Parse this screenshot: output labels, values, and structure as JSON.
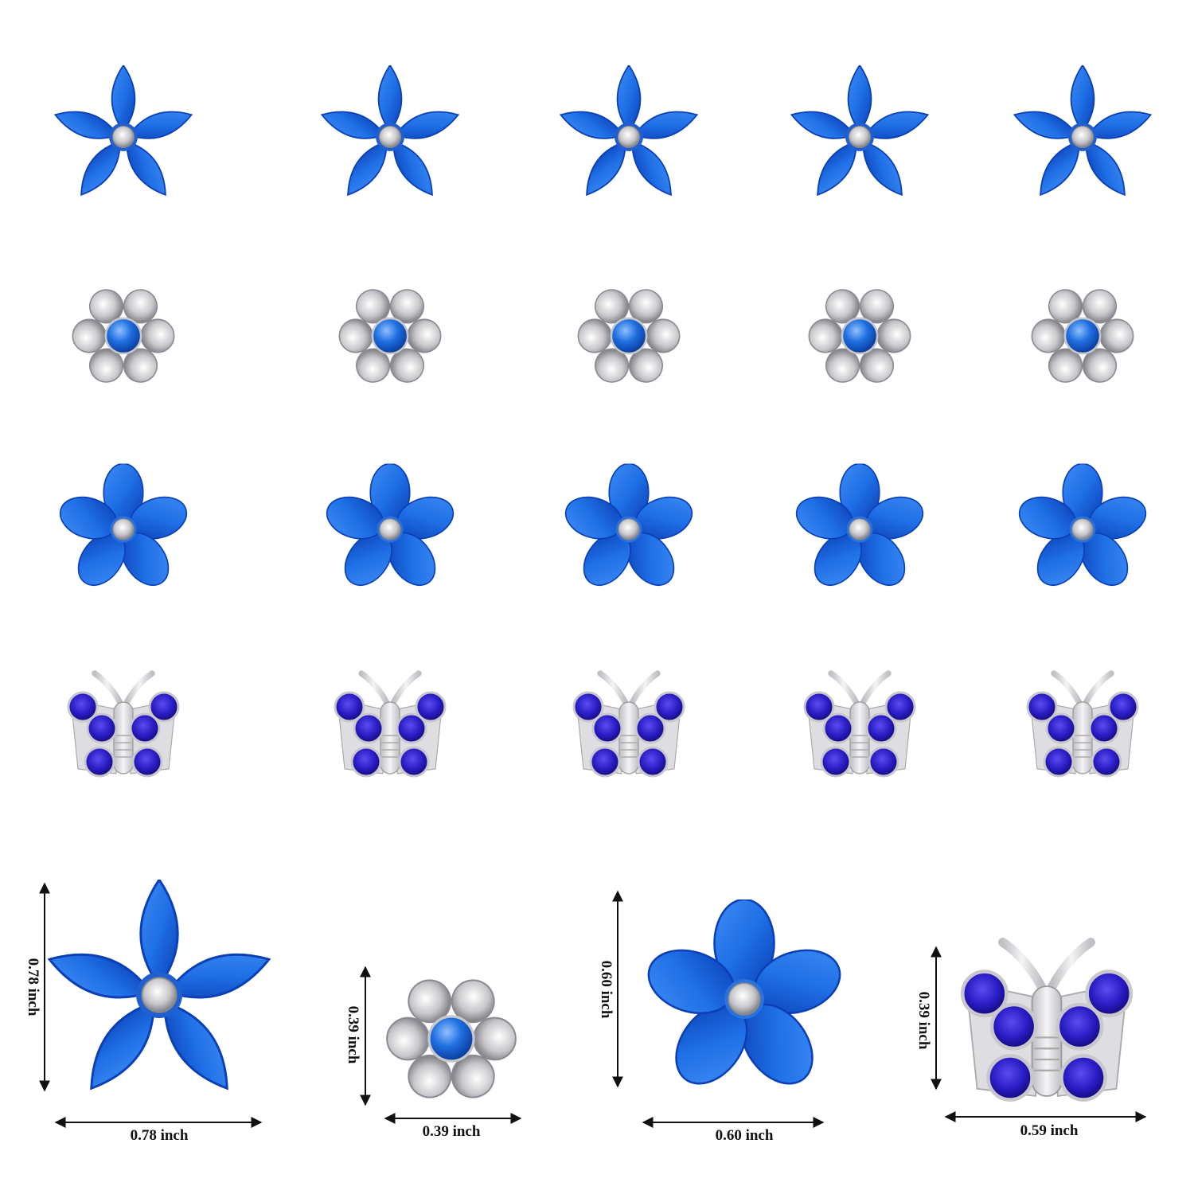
{
  "colors": {
    "petal_blue": "#1f6fe6",
    "petal_dark": "#0b3fb5",
    "rhinestone_purple": "#2a1cc4",
    "silver": "#d9d9dc",
    "arrow": "#111111"
  },
  "grid": {
    "rows": [
      "star-flower",
      "pearl-rhinestone-flower",
      "round-petal-flower",
      "butterfly"
    ],
    "columns": 5
  },
  "dimensions": [
    {
      "item": "star-flower",
      "width_label": "0.78 inch",
      "height_label": "0.78 inch"
    },
    {
      "item": "pearl-rhinestone-flower",
      "width_label": "0.39 inch",
      "height_label": "0.39 inch"
    },
    {
      "item": "round-petal-flower",
      "width_label": "0.60 inch",
      "height_label": "0.60 inch"
    },
    {
      "item": "butterfly",
      "width_label": "0.59 inch",
      "height_label": "0.39 inch"
    }
  ]
}
